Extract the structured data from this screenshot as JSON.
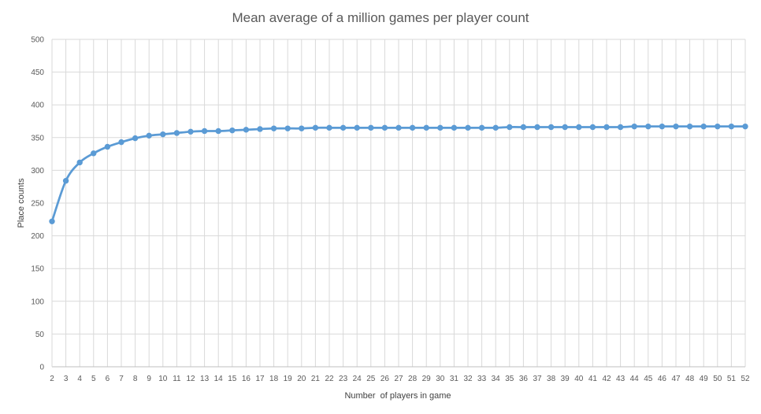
{
  "chart_data": {
    "type": "line",
    "title": "Mean average of a million games per player count",
    "xlabel": "Number  of players in game",
    "ylabel": "Place counts",
    "ylim": [
      0,
      500
    ],
    "yticks": [
      0,
      50,
      100,
      150,
      200,
      250,
      300,
      350,
      400,
      450,
      500
    ],
    "grid": true,
    "legend": "none",
    "colors": {
      "series": "#5b9bd5",
      "grid": "#d9d9d9",
      "axis": "#bfbfbf"
    },
    "categories": [
      "2",
      "3",
      "4",
      "5",
      "6",
      "7",
      "8",
      "9",
      "10",
      "11",
      "12",
      "13",
      "14",
      "15",
      "16",
      "17",
      "18",
      "19",
      "20",
      "21",
      "22",
      "23",
      "24",
      "25",
      "26",
      "27",
      "28",
      "29",
      "30",
      "31",
      "32",
      "33",
      "34",
      "35",
      "36",
      "37",
      "38",
      "39",
      "40",
      "41",
      "42",
      "43",
      "44",
      "45",
      "46",
      "47",
      "48",
      "49",
      "50",
      "51",
      "52"
    ],
    "series": [
      {
        "values": [
          222,
          284,
          312,
          326,
          336,
          343,
          349,
          353,
          355,
          357,
          359,
          360,
          360,
          361,
          362,
          363,
          364,
          364,
          364,
          365,
          365,
          365,
          365,
          365,
          365,
          365,
          365,
          365,
          365,
          365,
          365,
          365,
          365,
          366,
          366,
          366,
          366,
          366,
          366,
          366,
          366,
          366,
          367,
          367,
          367,
          367,
          367,
          367,
          367,
          367,
          367
        ]
      }
    ]
  }
}
